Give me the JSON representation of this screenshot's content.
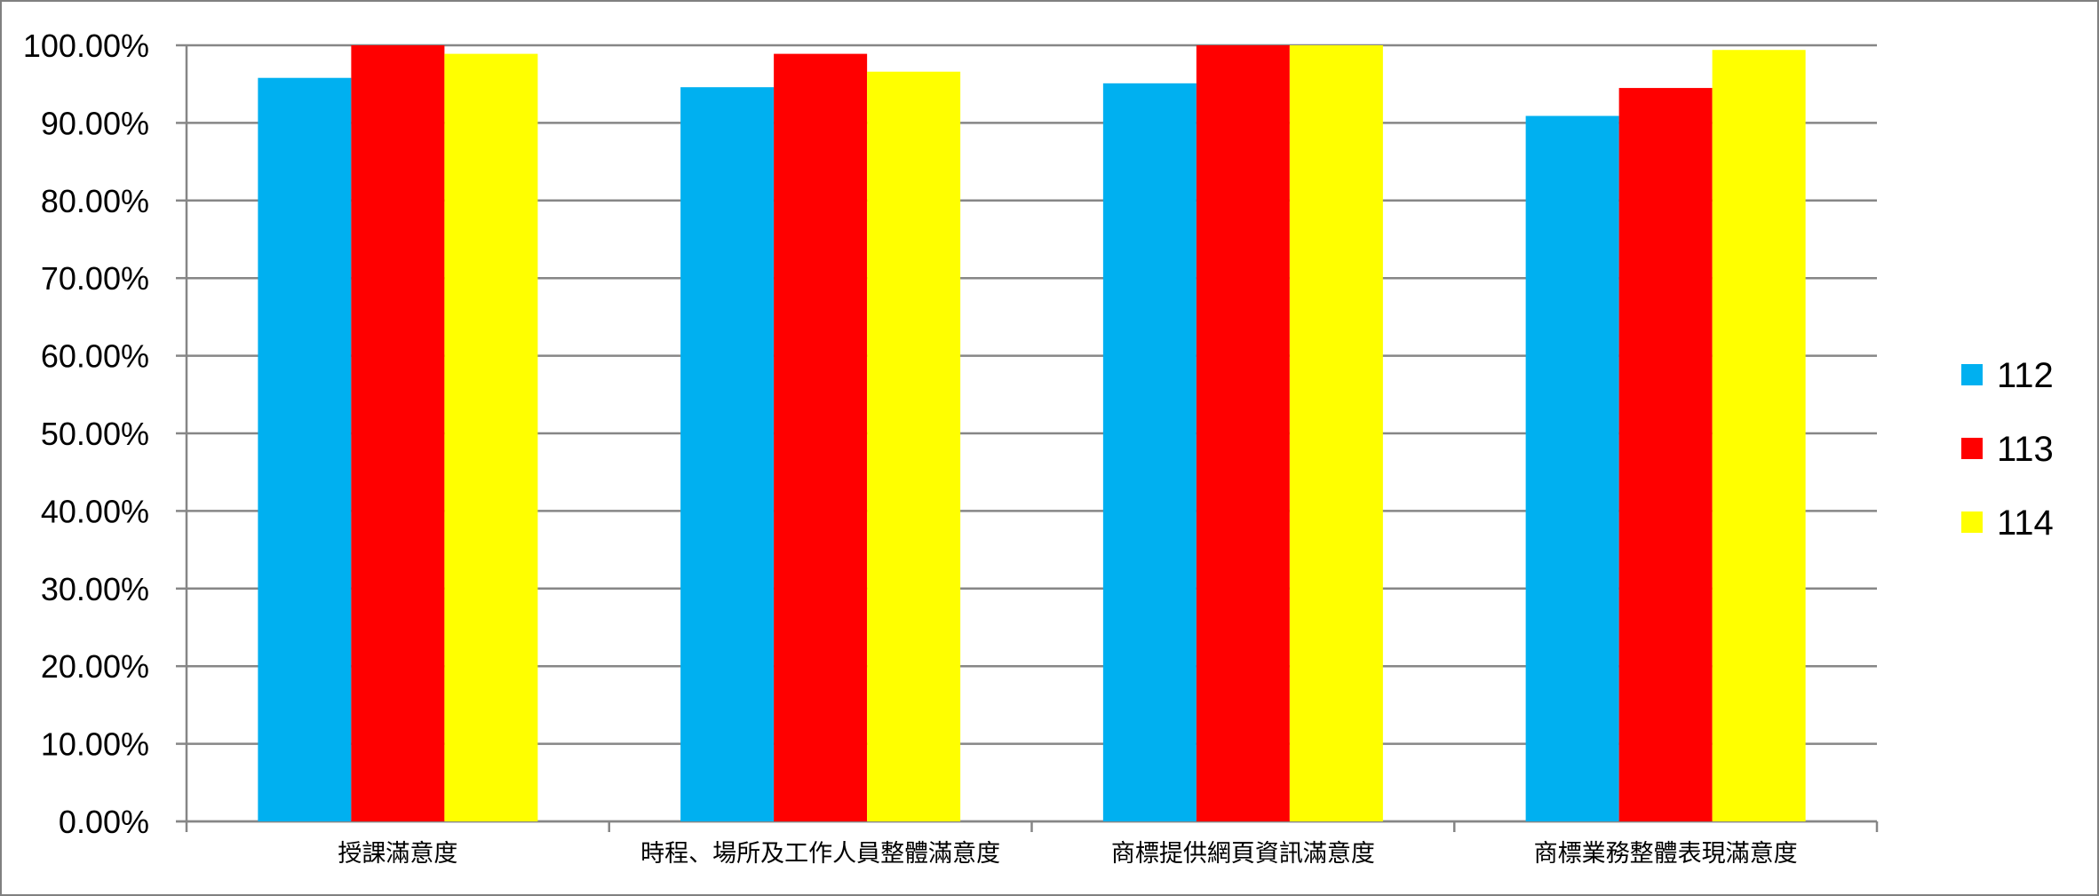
{
  "chart_data": {
    "type": "bar",
    "title": "",
    "xlabel": "",
    "ylabel": "",
    "categories": [
      "授課滿意度",
      "時程、場所及工作人員整體滿意度",
      "商標提供網頁資訊滿意度",
      "商標業務整體表現滿意度"
    ],
    "series": [
      {
        "name": "112",
        "color": "#00b0f0",
        "values": [
          95.8,
          94.6,
          95.1,
          90.9
        ]
      },
      {
        "name": "113",
        "color": "#ff0000",
        "values": [
          100.0,
          98.9,
          100.0,
          94.5
        ]
      },
      {
        "name": "114",
        "color": "#ffff00",
        "values": [
          98.9,
          96.6,
          100.0,
          99.4
        ]
      }
    ],
    "ylim": [
      0,
      100
    ],
    "yticks": [
      0,
      10,
      20,
      30,
      40,
      50,
      60,
      70,
      80,
      90,
      100
    ],
    "ytick_labels": [
      "0.00%",
      "10.00%",
      "20.00%",
      "30.00%",
      "40.00%",
      "50.00%",
      "60.00%",
      "70.00%",
      "80.00%",
      "90.00%",
      "100.00%"
    ],
    "grid": true,
    "legend_position": "right"
  }
}
